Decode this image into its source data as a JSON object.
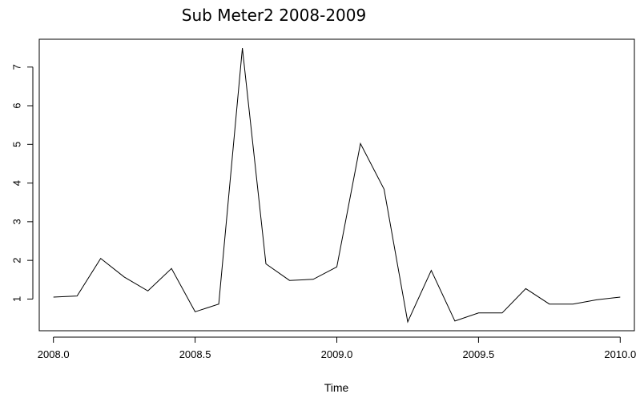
{
  "chart_data": {
    "type": "line",
    "title": "Sub Meter2 2008-2009",
    "xlabel": "Time",
    "ylabel": "",
    "xlim": [
      2007.95,
      2010.05
    ],
    "ylim": [
      0.18,
      7.72
    ],
    "x_ticks": [
      2008.0,
      2008.5,
      2009.0,
      2009.5,
      2010.0
    ],
    "x_tick_labels": [
      "2008.0",
      "2008.5",
      "2009.0",
      "2009.5",
      "2010.0"
    ],
    "y_ticks": [
      1,
      2,
      3,
      4,
      5,
      6,
      7
    ],
    "y_tick_labels": [
      "1",
      "2",
      "3",
      "4",
      "5",
      "6",
      "7"
    ],
    "grid": false,
    "legend": "none",
    "series": [
      {
        "x": [
          2008.0,
          2008.0833,
          2008.1667,
          2008.25,
          2008.3333,
          2008.4167,
          2008.5,
          2008.5833,
          2008.6667,
          2008.75,
          2008.8333,
          2008.9167,
          2009.0,
          2009.0833,
          2009.1667,
          2009.25,
          2009.3333,
          2009.4167,
          2009.5,
          2009.5833,
          2009.6667,
          2009.75,
          2009.8333,
          2009.9167,
          2010.0
        ],
        "values": [
          1.05,
          1.08,
          2.05,
          1.57,
          1.21,
          1.79,
          0.67,
          0.87,
          7.49,
          1.91,
          1.48,
          1.51,
          1.83,
          5.02,
          3.84,
          0.41,
          1.74,
          0.43,
          0.64,
          0.64,
          1.27,
          0.87,
          0.87,
          0.98,
          1.05
        ],
        "color": "#000000"
      }
    ]
  }
}
